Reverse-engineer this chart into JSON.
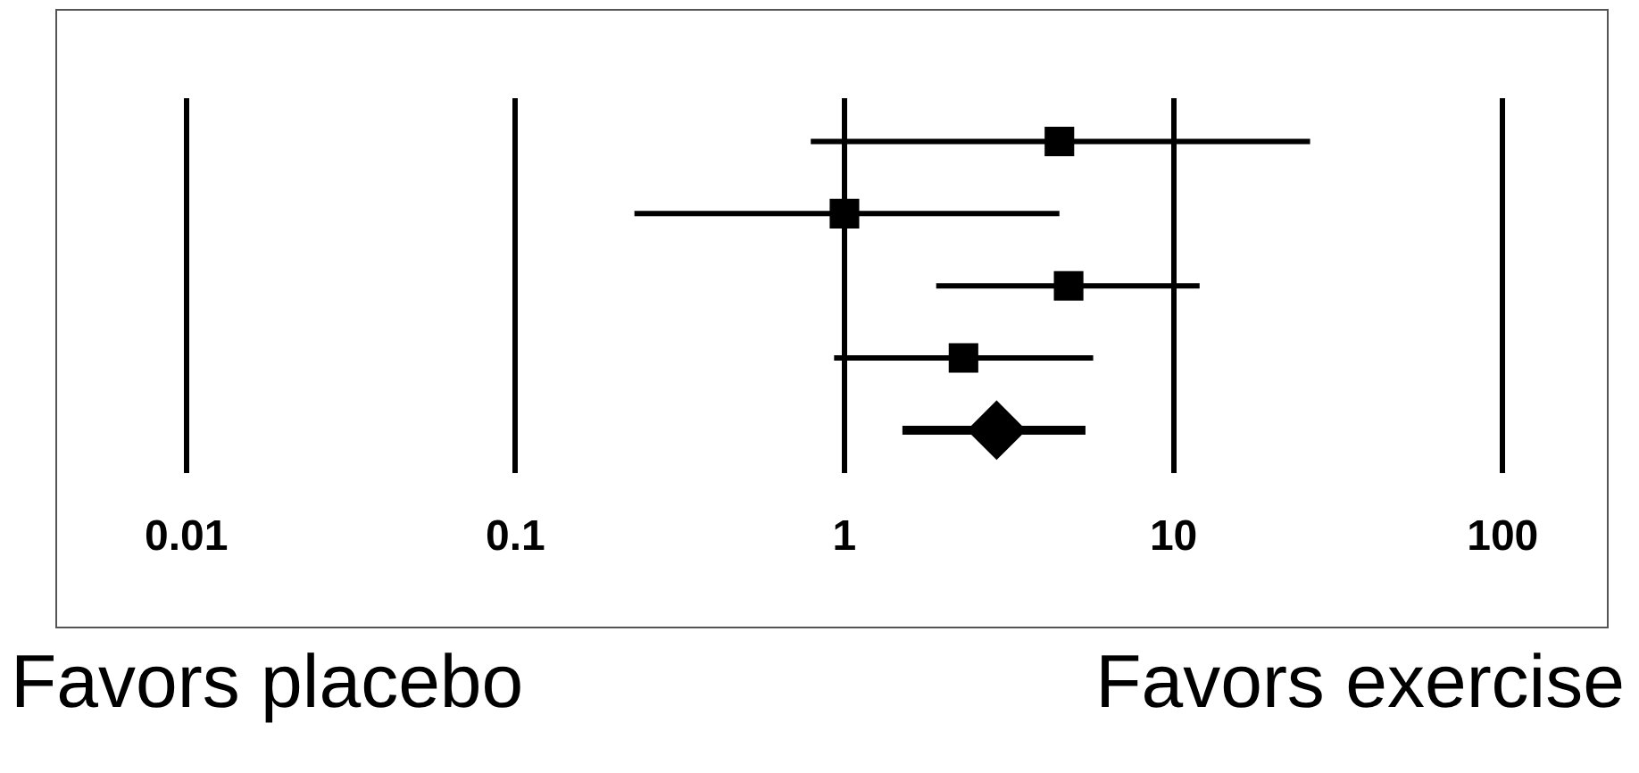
{
  "chart_data": {
    "type": "scatter",
    "orientation": "horizontal",
    "categories": [
      null,
      null,
      null,
      null,
      null
    ],
    "series": [
      {
        "color": "#000000",
        "marker": "square",
        "values": [
          4.5,
          1,
          4.8,
          2.3,
          null
        ],
        "errors": [
          [
            0.79,
            26
          ],
          [
            0.23,
            4.5
          ],
          [
            1.9,
            12
          ],
          [
            0.93,
            5.7
          ],
          null
        ]
      },
      {
        "color": "#000000",
        "marker": "diamond",
        "values": [
          null,
          null,
          null,
          null,
          2.9
        ],
        "errors": [
          null,
          null,
          null,
          null,
          [
            1.5,
            5.4
          ]
        ]
      }
    ],
    "log": "x",
    "xlim": [
      0.004,
      210
    ],
    "xticks": [
      0.01,
      0.1,
      1,
      10,
      100
    ],
    "grid": "x",
    "legend": false,
    "annotations": [
      "Favors placebo",
      "Favors exercise"
    ]
  }
}
